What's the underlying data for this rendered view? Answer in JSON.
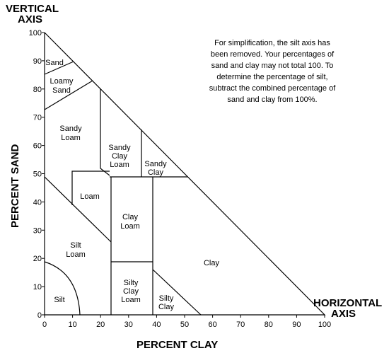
{
  "vertical_axis": {
    "title": [
      "VERTICAL",
      "AXIS"
    ],
    "label": "PERCENT SAND",
    "ticks": [
      0,
      10,
      20,
      30,
      40,
      50,
      60,
      70,
      80,
      90,
      100
    ]
  },
  "horizontal_axis": {
    "title": [
      "HORIZONTAL",
      "AXIS"
    ],
    "label": "PERCENT CLAY",
    "ticks": [
      0,
      10,
      20,
      30,
      40,
      50,
      60,
      70,
      80,
      90,
      100
    ]
  },
  "note": [
    "For simplification, the silt axis has",
    "been removed.  Your percentages of",
    "sand and clay may not total 100. To",
    "determine the percentage of silt,",
    "subtract the combined percentage of",
    "sand and clay from 100%."
  ],
  "regions": [
    {
      "label": [
        "Sand"
      ]
    },
    {
      "label": [
        "Loamy",
        "Sand"
      ]
    },
    {
      "label": [
        "Sandy",
        "Loam"
      ]
    },
    {
      "label": [
        "Sandy",
        "Clay",
        "Loam"
      ]
    },
    {
      "label": [
        "Sandy",
        "Clay"
      ]
    },
    {
      "label": [
        "Loam"
      ]
    },
    {
      "label": [
        "Clay",
        "Loam"
      ]
    },
    {
      "label": [
        "Silt",
        "Loam"
      ]
    },
    {
      "label": [
        "Clay"
      ]
    },
    {
      "label": [
        "Silty",
        "Clay",
        "Loam"
      ]
    },
    {
      "label": [
        "Silty",
        "Clay"
      ]
    },
    {
      "label": [
        "Silt"
      ]
    }
  ]
}
